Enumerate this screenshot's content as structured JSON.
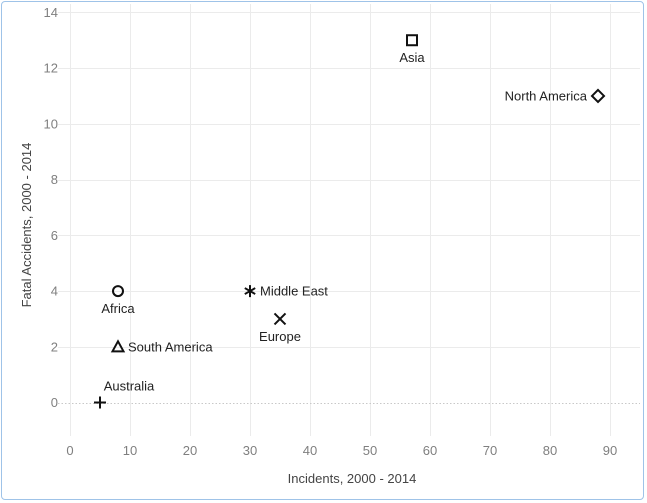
{
  "chart_data": {
    "type": "scatter",
    "xlabel": "Incidents, 2000 - 2014",
    "ylabel": "Fatal Accidents, 2000 - 2014",
    "xlim": [
      -2,
      95
    ],
    "ylim": [
      -1.2,
      14.3
    ],
    "xticks": [
      0,
      10,
      20,
      30,
      40,
      50,
      60,
      70,
      80,
      90
    ],
    "yticks": [
      0,
      2,
      4,
      6,
      8,
      10,
      12,
      14
    ],
    "grid": true,
    "points": [
      {
        "label": "Asia",
        "x": 57,
        "y": 13,
        "marker": "square",
        "label_pos": "below"
      },
      {
        "label": "North America",
        "x": 88,
        "y": 11,
        "marker": "diamond",
        "label_pos": "left"
      },
      {
        "label": "Africa",
        "x": 8,
        "y": 4,
        "marker": "circle",
        "label_pos": "below"
      },
      {
        "label": "Middle East",
        "x": 30,
        "y": 4,
        "marker": "asterisk",
        "label_pos": "right"
      },
      {
        "label": "Europe",
        "x": 35,
        "y": 3,
        "marker": "x",
        "label_pos": "below"
      },
      {
        "label": "South America",
        "x": 8,
        "y": 2,
        "marker": "triangle",
        "label_pos": "right"
      },
      {
        "label": "Australia",
        "x": 5,
        "y": 0,
        "marker": "plus",
        "label_pos": "above"
      }
    ]
  },
  "colors": {
    "frame_border": "#9fc3e8",
    "marker": "#111111",
    "tick_text": "#7f7f7f",
    "grid": "#ebebeb"
  }
}
